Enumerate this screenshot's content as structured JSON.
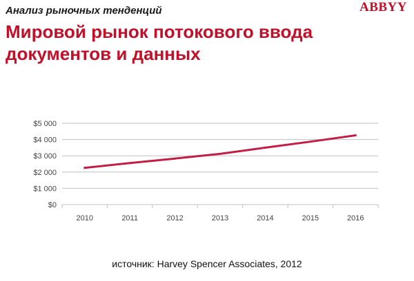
{
  "header": {
    "kicker": "Анализ рыночных тенденций",
    "logo": "ABBYY",
    "title": "Мировой рынок потокового ввода документов и данных"
  },
  "colors": {
    "accent": "#c0102a",
    "line": "#c21e45",
    "grid": "#bfbfbf"
  },
  "chart_data": {
    "type": "line",
    "x": [
      "2010",
      "2011",
      "2012",
      "2013",
      "2014",
      "2015",
      "2016"
    ],
    "series": [
      {
        "values": [
          2260,
          2550,
          2830,
          3120,
          3500,
          3870,
          4260
        ]
      }
    ],
    "yticks": [
      "$0",
      "$1 000",
      "$2 000",
      "$3 000",
      "$4 000",
      "$5 000"
    ],
    "ylim": [
      0,
      5000
    ],
    "grid": true,
    "legend": "none"
  },
  "footer": {
    "source": "источник: Harvey Spencer Associates, 2012"
  }
}
